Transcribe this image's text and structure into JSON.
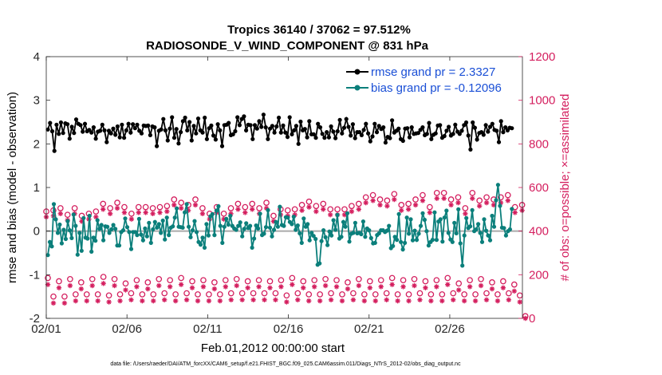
{
  "chart_data": {
    "type": "line",
    "title": "Tropics 36140 / 37062 = 97.512%",
    "subtitle": "RADIOSONDE_V_WIND_COMPONENT @ 831 hPa",
    "xlabel": "Feb.01,2012 00:00:00 start",
    "ylabel": "rmse and bias (model - observation)",
    "y2label": "# of obs: o=possible; ×=assimilated",
    "footnote": "data file: /Users/raeder/DAI/ATM_forcXX/CAM6_setup/f.e21.FHIST_BGC.f09_025.CAM6assim.011/Diags_NTrS_2012-02/obs_diag_output.nc",
    "x_ticks": [
      "02/01",
      "02/06",
      "02/11",
      "02/16",
      "02/21",
      "02/26"
    ],
    "xlim": [
      0,
      29.5
    ],
    "ylim": [
      -2,
      4
    ],
    "y_ticks": [
      "-2",
      "-1",
      "0",
      "1",
      "2",
      "3",
      "4"
    ],
    "y2lim": [
      0,
      1200
    ],
    "y2_ticks": [
      "0",
      "200",
      "400",
      "600",
      "800",
      "1000",
      "1200"
    ],
    "legend": {
      "location": "top-right",
      "rmse_label": "rmse grand pr = 2.3327",
      "bias_label": "bias grand pr = -0.12096"
    },
    "colors": {
      "rmse": "#000000",
      "bias": "#0b7f7b",
      "obs": "#d41e5e",
      "zero_line": "#aaaaaa",
      "legend_text": "#1a4fd6"
    },
    "series": [
      {
        "name": "rmse",
        "values": [
          2.33,
          2.48,
          2.29,
          1.84,
          2.44,
          2.23,
          2.49,
          2.25,
          2.47,
          2.45,
          2.12,
          2.39,
          2.25,
          2.56,
          2.46,
          2.43,
          2.28,
          2.46,
          2.29,
          2.32,
          2.26,
          2.38,
          2.12,
          2.28,
          2.3,
          2.44,
          2.31,
          2.04,
          2.3,
          2.24,
          2.35,
          2.21,
          2.4,
          2.15,
          2.44,
          2.14,
          2.31,
          2.46,
          2.26,
          2.45,
          2.36,
          2.44,
          2.3,
          2.24,
          2.42,
          2.41,
          2.42,
          2.2,
          2.4,
          2.38,
          1.95,
          2.3,
          2.33,
          2.57,
          2.31,
          2.08,
          2.35,
          2.61,
          2.14,
          2.34,
          2.01,
          2.27,
          2.52,
          2.6,
          2.31,
          2.5,
          2.08,
          2.41,
          2.24,
          2.58,
          2.31,
          2.26,
          2.6,
          2.11,
          2.36,
          2.42,
          2.19,
          2.1,
          2.45,
          2.31,
          1.95,
          2.43,
          2.44,
          2.48,
          2.2,
          2.22,
          2.29,
          2.61,
          2.43,
          2.57,
          2.63,
          2.31,
          2.44,
          2.43,
          2.11,
          2.43,
          2.35,
          2.52,
          2.39,
          2.67,
          2.38,
          2.11,
          2.35,
          2.41,
          2.26,
          2.4,
          2.6,
          2.26,
          2.42,
          2.26,
          2.16,
          2.61,
          2.22,
          2.31,
          2.41,
          2.0,
          2.51,
          2.31,
          2.34,
          2.15,
          2.52,
          2.22,
          2.22,
          2.14,
          2.46,
          2.38,
          2.23,
          2.14,
          2.27,
          2.15,
          2.4,
          2.28,
          2.13,
          2.29,
          2.55,
          2.24,
          2.37,
          2.57,
          2.39,
          2.19,
          2.45,
          2.13,
          2.27,
          2.27,
          2.2,
          2.32,
          2.46,
          2.24,
          2.06,
          2.17,
          2.46,
          2.27,
          2.41,
          2.34,
          2.38,
          2.03,
          2.16,
          2.13,
          2.54,
          2.26,
          2.3,
          2.35,
          2.11,
          2.07,
          2.35,
          2.36,
          2.15,
          2.38,
          2.23,
          2.24,
          2.25,
          2.32,
          2.38,
          2.2,
          2.23,
          2.48,
          2.11,
          2.21,
          2.24,
          2.42,
          2.43,
          2.14,
          2.18,
          2.3,
          2.39,
          2.19,
          2.23,
          2.44,
          2.28,
          2.23,
          2.3,
          2.43,
          2.49,
          2.19,
          1.87,
          2.49,
          2.37,
          2.1,
          2.25,
          2.27,
          2.21,
          2.43,
          2.28,
          2.39,
          2.46,
          2.32,
          2.3,
          2.04,
          2.52,
          2.27,
          2.38,
          2.31,
          2.37,
          2.36
        ]
      },
      {
        "name": "bias",
        "values": [
          -0.55,
          -0.25,
          -0.35,
          0.62,
          0.27,
          -0.04,
          0.15,
          -0.28,
          0.03,
          -0.18,
          0.23,
          0.02,
          -0.16,
          0.38,
          0.12,
          -0.54,
          -0.04,
          -0.45,
          0.3,
          -0.15,
          -0.17,
          0.35,
          -0.47,
          -0.15,
          -0.22,
          0.25,
          0.05,
          0.14,
          -0.21,
          0.11,
          0.1,
          -0.04,
          0.04,
          0.14,
          0.05,
          -0.33,
          -0.33,
          -0.02,
          0.02,
          0.29,
          0.09,
          -0.02,
          -0.41,
          -0.02,
          -0.02,
          -0.09,
          0.28,
          -0.08,
          -0.21,
          0.06,
          -0.12,
          0.19,
          -0.27,
          0.04,
          0.21,
          0.08,
          0.16,
          -0.04,
          0.24,
          -0.19,
          0.31,
          -0.09,
          0.08,
          0.11,
          0.31,
          0.52,
          0.1,
          0.09,
          0.08,
          0.43,
          0.62,
          0.1,
          -0.14,
          0.02,
          0.23,
          -0.02,
          -0.25,
          -0.31,
          -0.15,
          -0.38,
          0.16,
          -0.1,
          0.34,
          0.39,
          -0.09,
          0.47,
          0.57,
          0.12,
          -0.27,
          0.1,
          0.28,
          0.15,
          0.35,
          0.12,
          0.06,
          0.03,
          0.12,
          0.2,
          -0.12,
          0.05,
          0.18,
          0.07,
          0.12,
          -0.38,
          -0.17,
          0.13,
          0.06,
          0.4,
          -0.09,
          -0.06,
          0.09,
          0.48,
          0.08,
          -0.12,
          0.03,
          0.21,
          0.1,
          0.56,
          0.14,
          0.12,
          0.32,
          0.31,
          0.21,
          0.16,
          0.33,
          0.03,
          0.13,
          -0.05,
          -0.27,
          0.29,
          0.1,
          0.16,
          -0.21,
          -0.04,
          -0.11,
          -0.18,
          -0.77,
          -0.74,
          -0.23,
          0.02,
          -0.14,
          -0.32,
          -0.01,
          -0.1,
          0.25,
          0.03,
          0.37,
          -0.17,
          -0.13,
          0.21,
          0.1,
          0.41,
          -0.24,
          -0.06,
          -0.04,
          0.19,
          -0.05,
          -0.04,
          -0.07,
          0.22,
          -0.13,
          0.06,
          0.02,
          -0.16,
          -0.28,
          -0.27,
          -0.09,
          -0.05,
          0.02,
          0.02,
          -0.02,
          0.01,
          0.12,
          -0.39,
          -0.34,
          -0.13,
          -0.2,
          0.39,
          -0.25,
          -0.42,
          -0.27,
          0.31,
          -0.06,
          0.27,
          -0.21,
          0.01,
          -0.2,
          -0.06,
          0.12,
          0.41,
          0.26,
          0.0,
          -0.33,
          -0.25,
          -0.2,
          0.43,
          -0.2,
          0.22,
          0.27,
          -0.24,
          0.31,
          0.47,
          -0.04,
          -0.19,
          -0.25,
          0.19,
          -0.05,
          0.5,
          -0.28,
          -0.79,
          -0.1,
          0.3,
          0.07,
          0.11,
          0.48,
          0.0,
          0.04,
          0.16,
          -0.04,
          -0.25,
          0.27,
          0.01,
          -0.1,
          -0.21,
          0.35,
          0.1,
          0.71,
          1.06,
          0.58,
          0.08,
          0.07,
          -0.1,
          0.0,
          0.04,
          0.51
        ]
      },
      {
        "name": "obs_possible_high",
        "values": [
          490,
          495,
          505,
          475,
          505,
          470,
          480,
          490,
          525,
          505,
          530,
          510,
          480,
          510,
          510,
          505,
          510,
          515,
          545,
          530,
          520,
          545,
          505,
          480,
          510,
          480,
          505,
          525,
          510,
          525,
          505,
          530,
          470,
          500,
          495,
          500,
          520,
          535,
          515,
          525,
          500,
          500,
          500,
          515,
          525,
          555,
          565,
          545,
          540,
          570,
          520,
          525,
          545,
          565,
          510,
          575,
          575,
          545,
          555,
          505,
          575,
          540,
          555,
          545,
          555,
          565,
          510,
          520
        ]
      },
      {
        "name": "obs_assimilated_high",
        "values": [
          465,
          470,
          480,
          450,
          480,
          445,
          455,
          465,
          500,
          480,
          505,
          485,
          455,
          485,
          485,
          480,
          485,
          490,
          520,
          505,
          495,
          520,
          480,
          455,
          485,
          455,
          480,
          500,
          485,
          500,
          480,
          505,
          445,
          475,
          470,
          475,
          495,
          510,
          490,
          500,
          475,
          475,
          475,
          490,
          500,
          530,
          540,
          520,
          515,
          545,
          495,
          500,
          520,
          540,
          485,
          550,
          550,
          520,
          530,
          480,
          550,
          515,
          530,
          520,
          530,
          540,
          485,
          495
        ]
      },
      {
        "name": "obs_possible_low",
        "values": [
          185,
          100,
          170,
          100,
          180,
          110,
          165,
          110,
          180,
          110,
          190,
          105,
          180,
          110,
          160,
          115,
          175,
          110,
          165,
          110,
          180,
          115,
          175,
          110,
          185,
          115,
          170,
          110,
          175,
          110,
          165,
          110,
          175,
          115,
          180,
          115,
          170,
          115,
          175,
          115,
          170,
          115,
          175,
          105,
          185,
          115,
          170,
          110,
          175,
          110,
          180,
          115,
          175,
          110,
          165,
          115,
          180,
          110,
          170,
          110,
          175,
          115,
          185,
          110,
          175,
          110,
          180,
          115,
          170,
          110,
          175,
          110,
          185,
          115,
          160,
          110,
          175,
          110,
          180,
          115,
          165,
          110,
          170,
          115,
          155,
          105,
          10
        ]
      },
      {
        "name": "obs_assimilated_low",
        "values": [
          155,
          70,
          140,
          70,
          150,
          80,
          135,
          80,
          150,
          80,
          160,
          75,
          150,
          80,
          130,
          85,
          145,
          80,
          135,
          80,
          150,
          85,
          145,
          80,
          155,
          85,
          140,
          80,
          145,
          80,
          135,
          80,
          145,
          85,
          150,
          85,
          140,
          85,
          145,
          85,
          140,
          85,
          145,
          75,
          155,
          85,
          140,
          80,
          145,
          80,
          150,
          85,
          145,
          80,
          135,
          85,
          150,
          80,
          140,
          80,
          145,
          85,
          155,
          80,
          145,
          80,
          150,
          85,
          140,
          80,
          145,
          80,
          155,
          85,
          130,
          80,
          145,
          80,
          150,
          85,
          135,
          80,
          140,
          85,
          125,
          75,
          0
        ]
      }
    ]
  }
}
